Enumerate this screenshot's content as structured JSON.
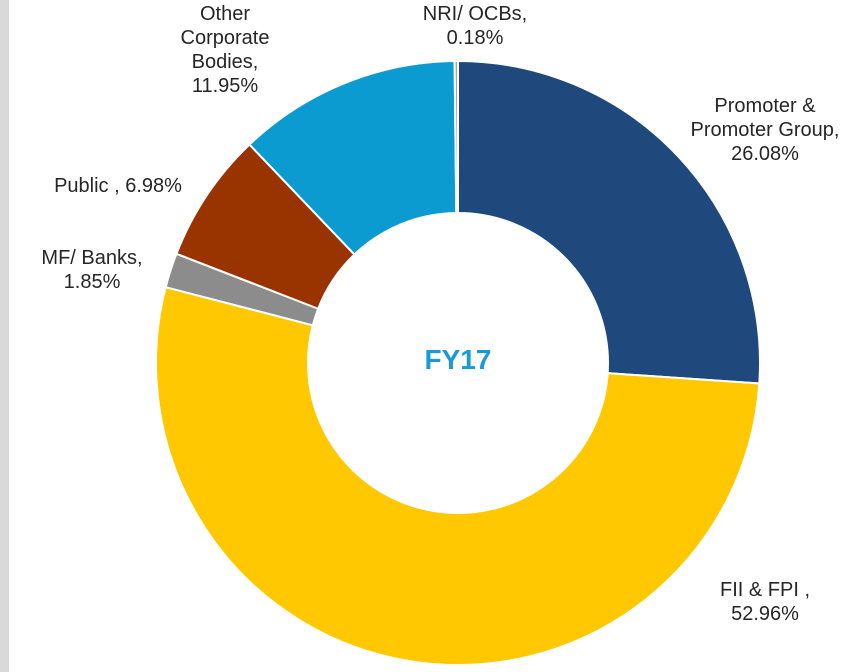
{
  "chart_data": {
    "type": "donut",
    "center_text": "FY17",
    "categories": [
      "Promoter & Promoter Group,",
      "FII & FPI ,",
      "MF/ Banks,",
      "Public ,",
      "Other Corporate Bodies,",
      "NRI/ OCBs,"
    ],
    "values": [
      26.08,
      52.96,
      1.85,
      6.98,
      11.95,
      0.18
    ],
    "value_labels": [
      "26.08%",
      "52.96%",
      "1.85%",
      "6.98%",
      "11.95%",
      "0.18%"
    ],
    "colors": [
      "#1f497d",
      "#ffc800",
      "#8c8c8c",
      "#993300",
      "#0c9bd0",
      "#a6a6a6"
    ]
  }
}
